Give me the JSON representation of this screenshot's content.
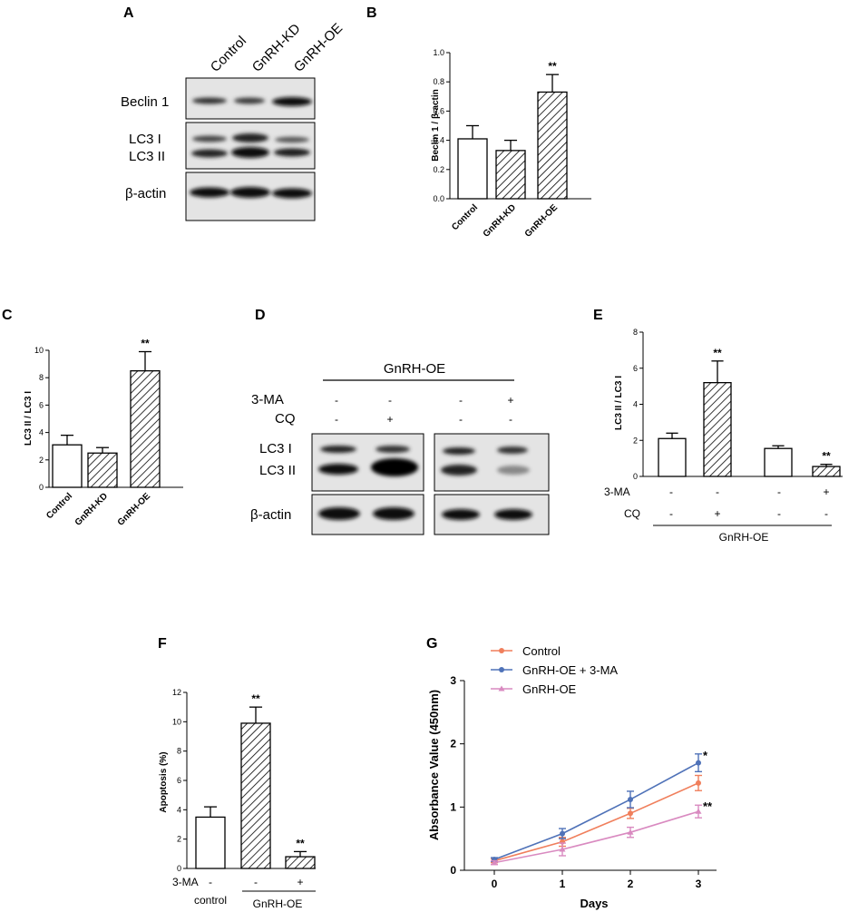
{
  "panel_labels": {
    "A": "A",
    "B": "B",
    "C": "C",
    "D": "D",
    "E": "E",
    "F": "F",
    "G": "G"
  },
  "blot_A": {
    "lanes": [
      "Control",
      "GnRH-KD",
      "GnRH-OE"
    ],
    "rows": [
      "Beclin 1",
      "LC3 I",
      "LC3 II",
      "β-actin"
    ]
  },
  "blot_D": {
    "group_label": "GnRH-OE",
    "treatments": [
      {
        "name": "3-MA",
        "signs": [
          "-",
          "-",
          "-",
          "+"
        ]
      },
      {
        "name": "CQ",
        "signs": [
          "-",
          "+",
          "-",
          "-"
        ]
      }
    ],
    "rows": [
      "LC3 I",
      "LC3 II",
      "β-actin"
    ]
  },
  "colors": {
    "line_control": "#f07f5c",
    "line_3ma": "#4f72b8",
    "line_oe": "#d98ac0",
    "axis": "#000000"
  },
  "chart_data": [
    {
      "panel": "B",
      "type": "bar",
      "categories": [
        "Control",
        "GnRH-KD",
        "GnRH-OE"
      ],
      "values": [
        0.41,
        0.33,
        0.73
      ],
      "errors": [
        0.09,
        0.07,
        0.12
      ],
      "patterns": [
        "none",
        "hatch",
        "hatch"
      ],
      "significance": [
        "",
        "",
        "**"
      ],
      "ylabel": "Beclin 1 / β-actin",
      "ylim": [
        0,
        1.0
      ],
      "yticks": [
        "0.0",
        "0.2",
        "0.4",
        "0.6",
        "0.8",
        "1.0"
      ]
    },
    {
      "panel": "C",
      "type": "bar",
      "categories": [
        "Control",
        "GnRH-KD",
        "GnRH-OE"
      ],
      "values": [
        3.1,
        2.5,
        8.5
      ],
      "errors": [
        0.7,
        0.4,
        1.4
      ],
      "patterns": [
        "none",
        "hatch",
        "hatch"
      ],
      "significance": [
        "",
        "",
        "**"
      ],
      "ylabel": "LC3 II / LC3 I",
      "ylim": [
        0,
        10
      ],
      "yticks": [
        "0",
        "2",
        "4",
        "6",
        "8",
        "10"
      ]
    },
    {
      "panel": "E",
      "type": "bar",
      "values": [
        2.1,
        5.2,
        1.55,
        0.55
      ],
      "errors": [
        0.3,
        1.2,
        0.15,
        0.12
      ],
      "patterns": [
        "none",
        "hatch",
        "none",
        "hatch"
      ],
      "significance": [
        "",
        "**",
        "",
        "**"
      ],
      "treatments": [
        {
          "name": "3-MA",
          "signs": [
            "-",
            "-",
            "-",
            "+"
          ]
        },
        {
          "name": "CQ",
          "signs": [
            "-",
            "+",
            "-",
            "-"
          ]
        }
      ],
      "group_label": "GnRH-OE",
      "ylabel": "LC3 II / LC3 I",
      "ylim": [
        0,
        8
      ],
      "yticks": [
        "0",
        "2",
        "4",
        "6",
        "8"
      ]
    },
    {
      "panel": "F",
      "type": "bar",
      "values": [
        3.5,
        9.9,
        0.8
      ],
      "errors": [
        0.7,
        1.1,
        0.35
      ],
      "patterns": [
        "none",
        "hatch",
        "hatch"
      ],
      "significance": [
        "",
        "**",
        "**"
      ],
      "treatments": [
        {
          "name": "3-MA",
          "signs": [
            "-",
            "-",
            "+"
          ]
        }
      ],
      "group_labels": [
        "control",
        "GnRH-OE"
      ],
      "ylabel": "Apoptosis (%)",
      "ylim": [
        0,
        12
      ],
      "yticks": [
        "0",
        "2",
        "4",
        "6",
        "8",
        "10",
        "12"
      ]
    },
    {
      "panel": "G",
      "type": "line",
      "x": [
        0,
        1,
        2,
        3
      ],
      "xticks": [
        "0",
        "1",
        "2",
        "3"
      ],
      "xlabel": "Days",
      "ylabel": "Absorbance Value (450nm)",
      "ylim": [
        0,
        3
      ],
      "yticks": [
        "0",
        "1",
        "2",
        "3"
      ],
      "legend_position": "top-left",
      "series": [
        {
          "name": "Control",
          "values": [
            0.15,
            0.45,
            0.9,
            1.38
          ],
          "errors": [
            0.03,
            0.07,
            0.08,
            0.12
          ],
          "marker": "circle"
        },
        {
          "name": "GnRH-OE + 3-MA",
          "values": [
            0.17,
            0.58,
            1.12,
            1.7
          ],
          "errors": [
            0.03,
            0.08,
            0.13,
            0.14
          ],
          "marker": "circle"
        },
        {
          "name": "GnRH-OE",
          "values": [
            0.12,
            0.33,
            0.6,
            0.93
          ],
          "errors": [
            0.03,
            0.1,
            0.08,
            0.1
          ],
          "marker": "triangle"
        }
      ],
      "significance": [
        {
          "series": "GnRH-OE + 3-MA",
          "text": "*"
        },
        {
          "series": "GnRH-OE",
          "text": "**"
        }
      ]
    }
  ]
}
